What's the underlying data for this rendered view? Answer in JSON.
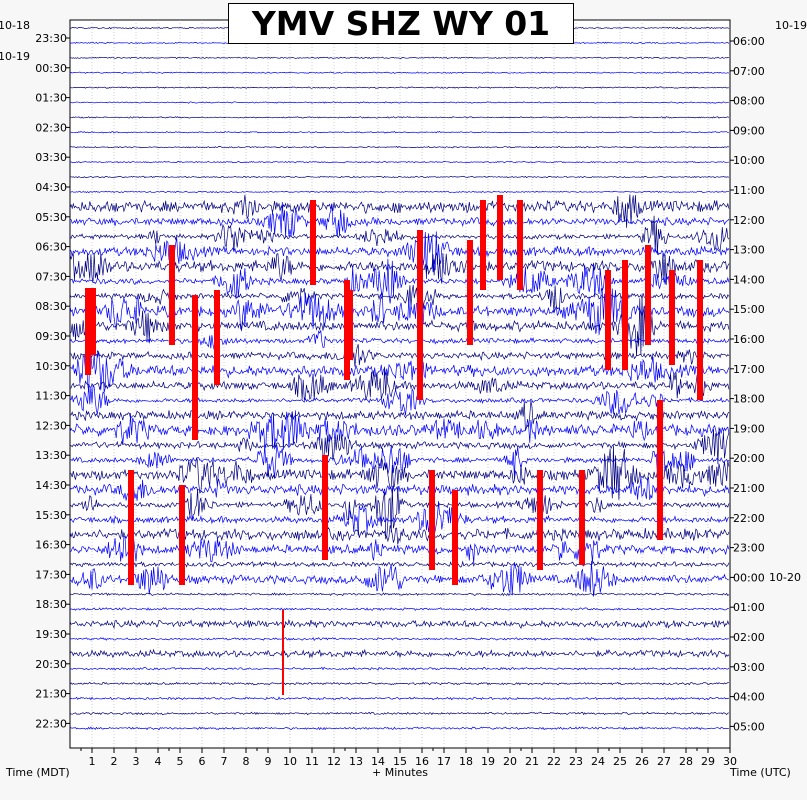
{
  "chart_data": {
    "type": "line",
    "title": "YMV SHZ WY 01",
    "xlabel": "+ Minutes",
    "left_axis_title": "Time (MDT)",
    "right_axis_title": "Time (UTC)",
    "xlim": [
      0,
      30
    ],
    "x_ticks": [
      "1",
      "2",
      "3",
      "4",
      "5",
      "6",
      "7",
      "8",
      "9",
      "10",
      "11",
      "12",
      "13",
      "14",
      "15",
      "16",
      "17",
      "18",
      "19",
      "20",
      "21",
      "22",
      "23",
      "24",
      "25",
      "26",
      "27",
      "28",
      "29",
      "30"
    ],
    "left_date_labels": [
      "10-18",
      "10-19"
    ],
    "right_date_labels": [
      "10-19",
      "10-20"
    ],
    "left_time_labels": [
      "23:30",
      "00:30",
      "01:30",
      "02:30",
      "03:30",
      "04:30",
      "05:30",
      "06:30",
      "07:30",
      "08:30",
      "09:30",
      "10:30",
      "11:30",
      "12:30",
      "13:30",
      "14:30",
      "15:30",
      "16:30",
      "17:30",
      "18:30",
      "19:30",
      "20:30",
      "21:30",
      "22:30"
    ],
    "right_time_labels": [
      "06:00",
      "07:00",
      "08:00",
      "09:00",
      "10:00",
      "11:00",
      "12:00",
      "13:00",
      "14:00",
      "15:00",
      "16:00",
      "17:00",
      "18:00",
      "19:00",
      "20:00",
      "21:00",
      "22:00",
      "23:00",
      "00:00",
      "01:00",
      "02:00",
      "03:00",
      "04:00",
      "05:00"
    ],
    "trace_colors": [
      "#000080",
      "#0000cc",
      "#0000ff",
      "#ff0000"
    ],
    "grid": true
  }
}
